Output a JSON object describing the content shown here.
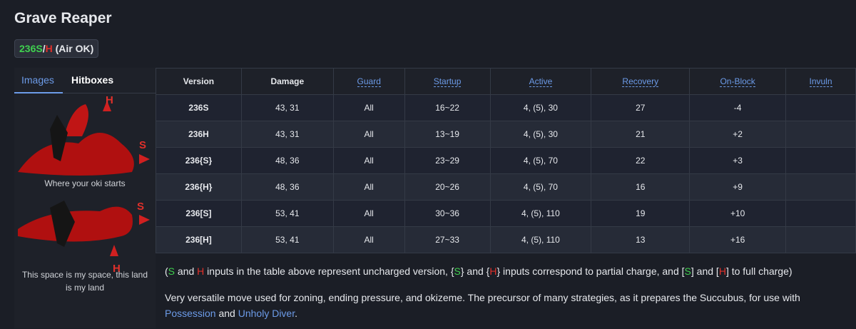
{
  "header": {
    "title": "Grave Reaper",
    "badge": [
      {
        "text": "236S",
        "color": "#3fd14f"
      },
      {
        "text": "/"
      },
      {
        "text": "H",
        "color": "#e0302a"
      },
      {
        "text": " (Air OK)"
      }
    ]
  },
  "tabs": [
    "Images",
    "Hitboxes"
  ],
  "images": [
    {
      "labels": [
        "H",
        "S"
      ],
      "caption": "Where your oki starts"
    },
    {
      "labels": [
        "S",
        "H"
      ],
      "caption": "This space is my space, this land is my land"
    }
  ],
  "table": {
    "columns": [
      "Version",
      "Damage",
      "Guard",
      "Startup",
      "Active",
      "Recovery",
      "On-Block",
      "Invuln"
    ],
    "rows": [
      [
        "236S",
        "43, 31",
        "All",
        "16~22",
        "4, (5), 30",
        "27",
        "-4"
      ],
      [
        "236H",
        "43, 31",
        "All",
        "13~19",
        "4, (5), 30",
        "21",
        "+2"
      ],
      [
        "236{S}",
        "48, 36",
        "All",
        "23~29",
        "4, (5), 70",
        "22",
        "+3"
      ],
      [
        "236{H}",
        "48, 36",
        "All",
        "20~26",
        "4, (5), 70",
        "16",
        "+9"
      ],
      [
        "236[S]",
        "53, 41",
        "All",
        "30~36",
        "4, (5), 110",
        "19",
        "+10"
      ],
      [
        "236[H]",
        "53, 41",
        "All",
        "27~33",
        "4, (5), 110",
        "13",
        "+16"
      ]
    ]
  },
  "notes": [
    [
      {
        "text": "("
      },
      {
        "text": "S",
        "color": "#3fd14f"
      },
      {
        "text": " and "
      },
      {
        "text": "H",
        "color": "#e0302a"
      },
      {
        "text": " inputs in the table above represent uncharged version, {"
      },
      {
        "text": "S",
        "color": "#3fd14f"
      },
      {
        "text": "} and {"
      },
      {
        "text": "H",
        "color": "#e0302a"
      },
      {
        "text": "} inputs correspond to partial charge, and ["
      },
      {
        "text": "S",
        "color": "#3fd14f"
      },
      {
        "text": "] and ["
      },
      {
        "text": "H",
        "color": "#e0302a"
      },
      {
        "text": "] to full charge)"
      }
    ],
    [
      {
        "text": "Very versatile move used for zoning, ending pressure, and okizeme. The precursor of many strategies, as it prepares the Succubus, for use with "
      },
      {
        "text": "Possession",
        "color": "#6c9be8"
      },
      {
        "text": " and "
      },
      {
        "text": "Unholy Diver",
        "color": "#6c9be8"
      },
      {
        "text": "."
      }
    ]
  ]
}
